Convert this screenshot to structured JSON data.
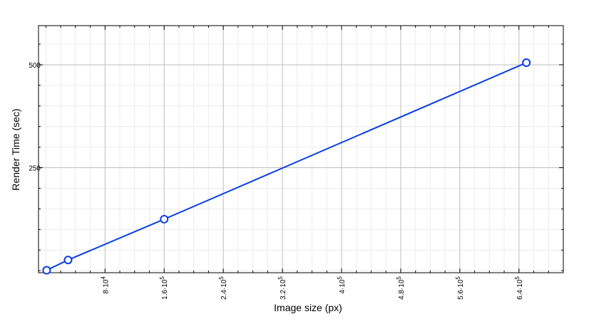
{
  "chart_data": {
    "type": "line",
    "xlabel": "Image size (px)",
    "ylabel": "Render Time (sec)",
    "xlim": [
      -10000,
      700000
    ],
    "ylim": [
      -5,
      595
    ],
    "x_ticks": [
      {
        "value": 80000,
        "mantissa": "8",
        "exponent": "4"
      },
      {
        "value": 160000,
        "mantissa": "1.6",
        "exponent": "5"
      },
      {
        "value": 240000,
        "mantissa": "2.4",
        "exponent": "5"
      },
      {
        "value": 320000,
        "mantissa": "3.2",
        "exponent": "5"
      },
      {
        "value": 400000,
        "mantissa": "4",
        "exponent": "5"
      },
      {
        "value": 480000,
        "mantissa": "4.8",
        "exponent": "5"
      },
      {
        "value": 560000,
        "mantissa": "5.6",
        "exponent": "5"
      },
      {
        "value": 640000,
        "mantissa": "6.4",
        "exponent": "5"
      }
    ],
    "y_ticks": [
      {
        "value": 250,
        "label": "250"
      },
      {
        "value": 500,
        "label": "500"
      }
    ],
    "grid": true,
    "series": [
      {
        "x": [
          1000,
          30000,
          160000,
          650000
        ],
        "y": [
          1,
          26,
          125,
          505
        ],
        "color": "#0a3ee8"
      }
    ]
  }
}
